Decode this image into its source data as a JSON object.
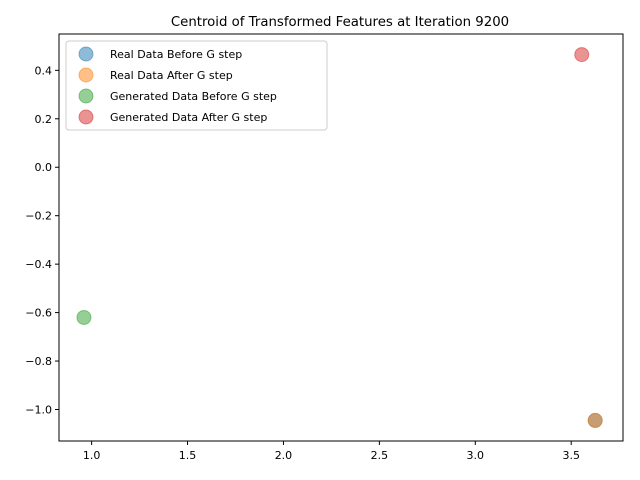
{
  "chart_data": {
    "type": "scatter",
    "title": "Centroid of Transformed Features at Iteration 9200",
    "xlabel": "",
    "ylabel": "",
    "xlim": [
      0.83,
      3.77
    ],
    "ylim": [
      -1.13,
      0.55
    ],
    "xticks": [
      "1.0",
      "1.5",
      "2.0",
      "2.5",
      "3.0",
      "3.5"
    ],
    "yticks": [
      "0.4",
      "0.2",
      "0.0",
      "−0.2",
      "−0.4",
      "−0.6",
      "−0.8",
      "−1.0"
    ],
    "grid": false,
    "legend_position": "top-left",
    "series": [
      {
        "name": "Real Data Before G step",
        "color": "#1f77b4",
        "points": [
          [
            3.625,
            -1.045
          ]
        ]
      },
      {
        "name": "Real Data After G step",
        "color": "#ff7f0e",
        "points": [
          [
            3.625,
            -1.045
          ]
        ]
      },
      {
        "name": "Generated Data Before G step",
        "color": "#2ca02c",
        "points": [
          [
            0.96,
            -0.62
          ]
        ]
      },
      {
        "name": "Generated Data After G step",
        "color": "#d62728",
        "points": [
          [
            3.555,
            0.465
          ]
        ]
      }
    ]
  }
}
